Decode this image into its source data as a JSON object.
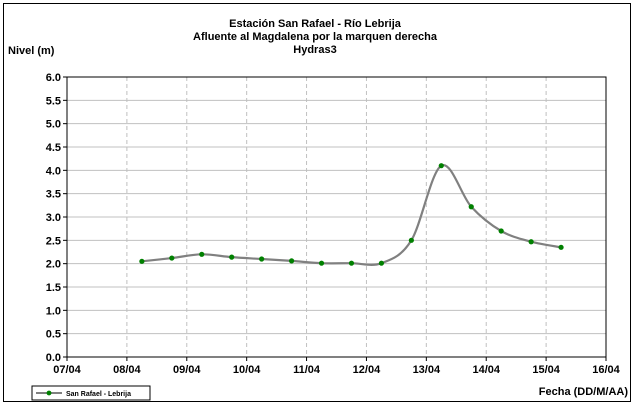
{
  "chart_data": {
    "type": "line",
    "title": [
      "Estación San Rafael - Río Lebrija",
      "Afluente al Magdalena por la marquen derecha",
      "Hydras3"
    ],
    "ylabel": "Nivel (m)",
    "xlabel": "Fecha (DD/M/AA)",
    "ylim": [
      0,
      6
    ],
    "yticks": [
      "0.0",
      "0.5",
      "1.0",
      "1.5",
      "2.0",
      "2.5",
      "3.0",
      "3.5",
      "4.0",
      "4.5",
      "5.0",
      "5.5",
      "6.0"
    ],
    "xlim": [
      "07/04",
      "16/04"
    ],
    "xticks": [
      "07/04",
      "08/04",
      "09/04",
      "10/04",
      "11/04",
      "12/04",
      "13/04",
      "14/04",
      "15/04",
      "16/04"
    ],
    "grid": true,
    "legend_position": "bottom-left",
    "series": [
      {
        "name": "San Rafael - Lebrija",
        "color": "#808080",
        "marker_color": "#008000",
        "x": [
          1.25,
          1.75,
          2.25,
          2.75,
          3.25,
          3.75,
          4.25,
          4.75,
          5.25,
          5.75,
          6.25,
          6.75,
          7.25,
          7.75,
          8.25
        ],
        "y": [
          2.05,
          2.12,
          2.2,
          2.14,
          2.1,
          2.06,
          2.01,
          2.01,
          2.01,
          2.5,
          4.1,
          3.22,
          2.7,
          2.47,
          2.35
        ]
      }
    ]
  }
}
